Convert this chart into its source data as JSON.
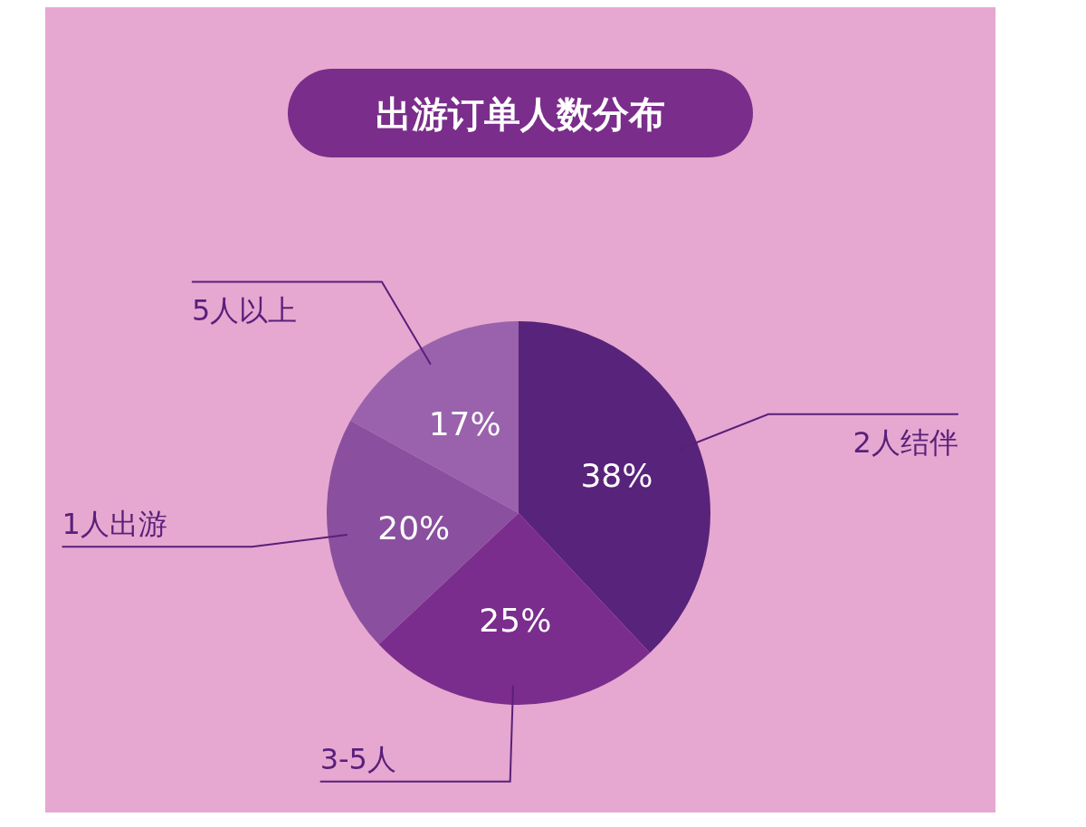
{
  "chart_data": {
    "type": "pie",
    "title": "出游订单人数分布",
    "categories": [
      "2人结伴",
      "3-5人",
      "1人出游",
      "5人以上"
    ],
    "values": [
      38,
      25,
      20,
      17
    ],
    "value_labels": [
      "38%",
      "25%",
      "20%",
      "17%"
    ],
    "colors": [
      "#58237a",
      "#7b2d8e",
      "#8a4f9e",
      "#9a62ac"
    ]
  }
}
